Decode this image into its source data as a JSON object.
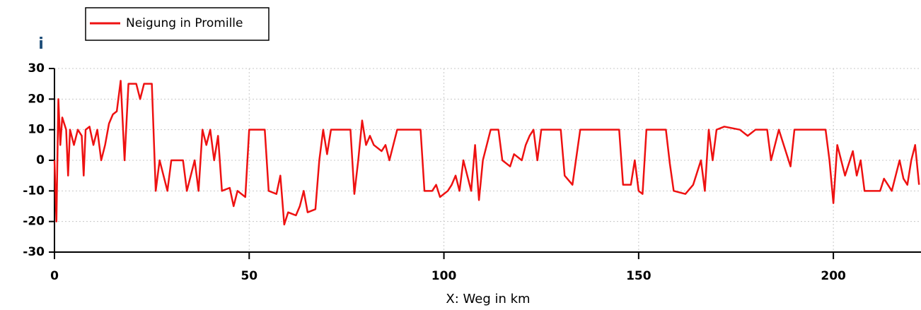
{
  "chart_data": {
    "type": "line",
    "y_label": "i",
    "x_label": "X: Weg in km",
    "xlim": [
      0,
      222.5
    ],
    "ylim": [
      -30,
      30
    ],
    "xticks": [
      0,
      50,
      100,
      150,
      200
    ],
    "yticks": [
      -30,
      -20,
      -10,
      0,
      10,
      20,
      30
    ],
    "grid": true,
    "series": [
      {
        "name": "Neigung in Promille",
        "color": "#ee1111",
        "x": [
          0,
          0.5,
          1,
          1.5,
          2,
          3,
          3.5,
          4,
          5,
          6,
          7,
          7.5,
          8,
          9,
          10,
          11,
          12,
          13,
          14,
          15,
          16,
          17,
          18,
          19,
          21,
          22,
          23,
          25,
          26,
          27,
          28,
          29,
          30,
          33,
          34,
          36,
          37,
          38,
          39,
          40,
          41,
          42,
          43,
          45,
          46,
          47,
          49,
          50,
          54,
          55,
          57,
          58,
          59,
          60,
          62,
          63,
          64,
          65,
          67,
          68,
          69,
          70,
          71,
          76,
          77,
          78,
          79,
          80,
          81,
          82,
          84,
          85,
          86,
          88,
          94,
          95,
          97,
          98,
          99,
          101,
          102,
          103,
          104,
          105,
          107,
          108,
          109,
          110,
          112,
          114,
          115,
          117,
          118,
          120,
          121,
          122,
          123,
          124,
          125,
          130,
          131,
          133,
          135,
          145,
          146,
          148,
          149,
          150,
          151,
          152,
          157,
          158,
          159,
          162,
          164,
          166,
          167,
          168,
          169,
          170,
          172,
          176,
          178,
          180,
          183,
          184,
          186,
          189,
          190,
          198,
          199,
          200,
          201,
          203,
          205,
          206,
          207,
          208,
          212,
          213,
          215,
          217,
          218,
          219,
          220,
          221,
          222
        ],
        "values": [
          0,
          -20,
          20,
          5,
          14,
          10,
          -5,
          10,
          5,
          10,
          8,
          -5,
          10,
          11,
          5,
          10,
          0,
          5,
          12,
          15,
          16,
          26,
          0,
          25,
          25,
          20,
          25,
          25,
          -10,
          0,
          -5,
          -10,
          0,
          0,
          -10,
          0,
          -10,
          10,
          5,
          10,
          0,
          8,
          -10,
          -9,
          -15,
          -10,
          -12,
          10,
          10,
          -10,
          -11,
          -5,
          -21,
          -17,
          -18,
          -15,
          -10,
          -17,
          -16,
          0,
          10,
          2,
          10,
          10,
          -11,
          0,
          13,
          5,
          8,
          5,
          3,
          5,
          0,
          10,
          10,
          -10,
          -10,
          -8,
          -12,
          -10,
          -8,
          -5,
          -10,
          0,
          -10,
          5,
          -13,
          0,
          10,
          10,
          0,
          -2,
          2,
          0,
          5,
          8,
          10,
          0,
          10,
          10,
          -5,
          -8,
          10,
          10,
          -8,
          -8,
          0,
          -10,
          -11,
          10,
          10,
          -1,
          -10,
          -11,
          -8,
          0,
          -10,
          10,
          0,
          10,
          11,
          10,
          8,
          10,
          10,
          0,
          10,
          -2,
          10,
          10,
          0,
          -14,
          5,
          -5,
          3,
          -5,
          0,
          -10,
          -10,
          -6,
          -10,
          0,
          -6,
          -8,
          0,
          5,
          -8
        ]
      }
    ]
  }
}
